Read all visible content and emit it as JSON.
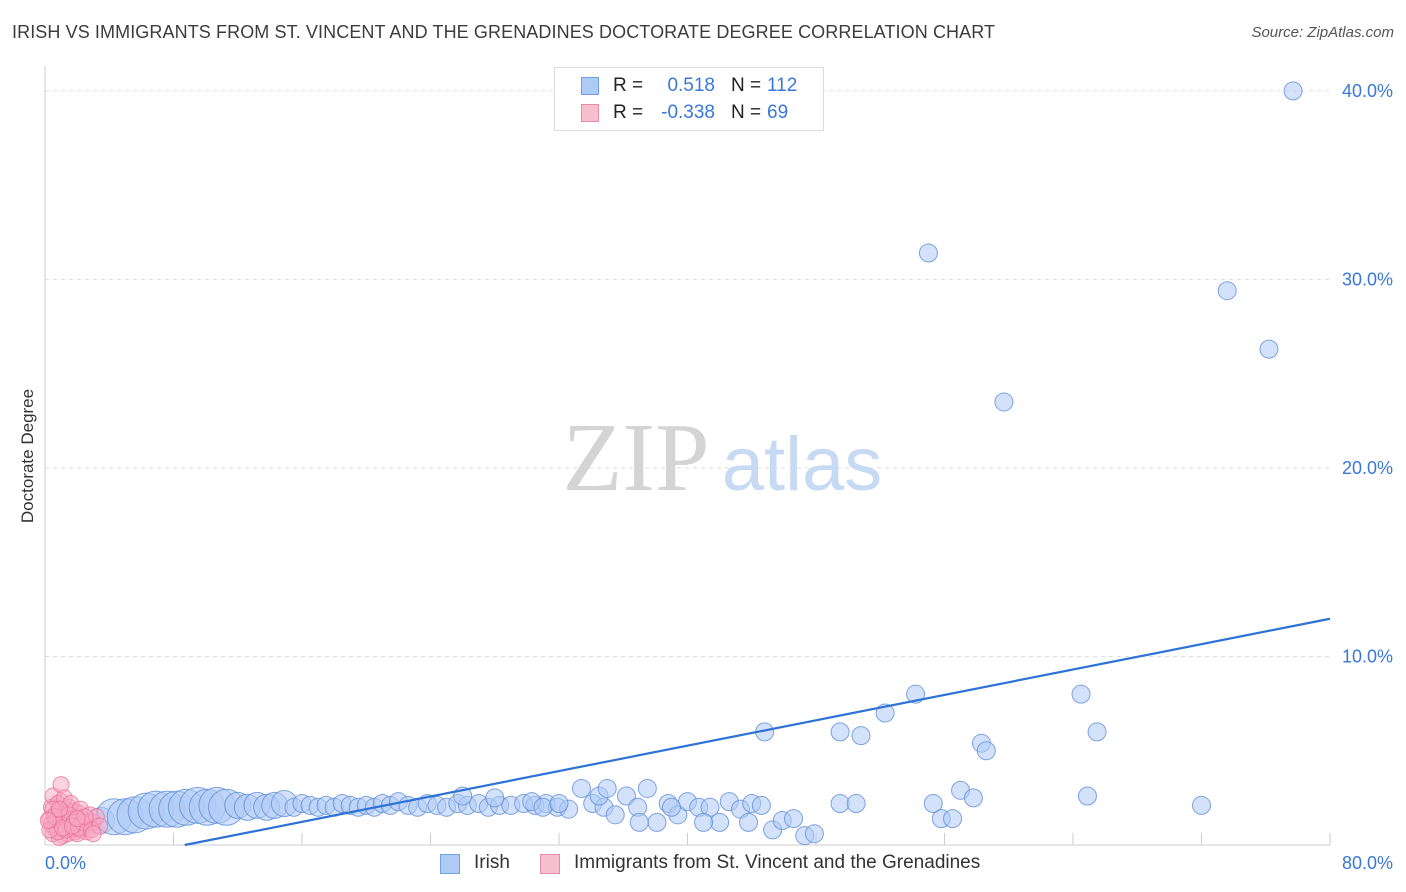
{
  "header": {
    "title": "IRISH VS IMMIGRANTS FROM ST. VINCENT AND THE GRENADINES DOCTORATE DEGREE CORRELATION CHART",
    "source": "Source: ZipAtlas.com"
  },
  "legend_top": {
    "r_label": "R =",
    "n_label": "N =",
    "rows": [
      {
        "r": "0.518",
        "n": "112",
        "fill": "#aecbf5",
        "stroke": "#6f9fe0"
      },
      {
        "r": "-0.338",
        "n": "69",
        "fill": "#f7bfd0",
        "stroke": "#e98aa7"
      }
    ]
  },
  "watermark": {
    "zip": "ZIP",
    "atlas": "atlas"
  },
  "colors": {
    "irish_fill": "#aecbf5",
    "irish_stroke": "#5f8fd8",
    "irish_line": "#2f72d6",
    "svg_fill": "#f7a7c2",
    "svg_stroke": "#e86f98",
    "tick_label": "#3a78d8",
    "grid": "#dddddd"
  },
  "chart_data": {
    "type": "scatter",
    "title": "IRISH VS IMMIGRANTS FROM ST. VINCENT AND THE GRENADINES DOCTORATE DEGREE CORRELATION CHART",
    "xlabel": "",
    "ylabel": "Doctorate Degree",
    "xlim": [
      0,
      80
    ],
    "ylim": [
      0,
      41
    ],
    "x_tick_labels": [
      "0.0%",
      "80.0%"
    ],
    "y_ticks": [
      {
        "value": 10,
        "label": "10.0%"
      },
      {
        "value": 20,
        "label": "20.0%"
      },
      {
        "value": 30,
        "label": "30.0%"
      },
      {
        "value": 40,
        "label": "40.0%"
      }
    ],
    "grid": true,
    "series": [
      {
        "name": "Irish",
        "r": 0.518,
        "n": 112,
        "trend": {
          "x": [
            8.7,
            80.0
          ],
          "y": [
            0.0,
            12.0
          ]
        },
        "points": [
          {
            "x": 2.5,
            "y": 1.2,
            "s": 1
          },
          {
            "x": 3.5,
            "y": 1.3,
            "s": 2
          },
          {
            "x": 4.3,
            "y": 1.5,
            "s": 3
          },
          {
            "x": 5.0,
            "y": 1.5,
            "s": 3
          },
          {
            "x": 5.6,
            "y": 1.6,
            "s": 3
          },
          {
            "x": 6.3,
            "y": 1.8,
            "s": 3
          },
          {
            "x": 6.9,
            "y": 1.9,
            "s": 3
          },
          {
            "x": 7.6,
            "y": 1.9,
            "s": 3
          },
          {
            "x": 8.2,
            "y": 1.9,
            "s": 3
          },
          {
            "x": 8.8,
            "y": 2.0,
            "s": 3
          },
          {
            "x": 9.5,
            "y": 2.1,
            "s": 3
          },
          {
            "x": 10.1,
            "y": 2.0,
            "s": 3
          },
          {
            "x": 10.7,
            "y": 2.1,
            "s": 3
          },
          {
            "x": 11.3,
            "y": 2.0,
            "s": 3
          },
          {
            "x": 12.0,
            "y": 2.1,
            "s": 2
          },
          {
            "x": 12.6,
            "y": 2.0,
            "s": 2
          },
          {
            "x": 13.2,
            "y": 2.1,
            "s": 2
          },
          {
            "x": 13.8,
            "y": 2.0,
            "s": 2
          },
          {
            "x": 14.3,
            "y": 2.1,
            "s": 2
          },
          {
            "x": 14.9,
            "y": 2.2,
            "s": 2
          },
          {
            "x": 15.5,
            "y": 2.0,
            "s": 1
          },
          {
            "x": 16.0,
            "y": 2.2,
            "s": 1
          },
          {
            "x": 16.5,
            "y": 2.1,
            "s": 1
          },
          {
            "x": 17.0,
            "y": 2.0,
            "s": 1
          },
          {
            "x": 17.5,
            "y": 2.1,
            "s": 1
          },
          {
            "x": 18.0,
            "y": 2.0,
            "s": 1
          },
          {
            "x": 18.5,
            "y": 2.2,
            "s": 1
          },
          {
            "x": 19.0,
            "y": 2.1,
            "s": 1
          },
          {
            "x": 19.5,
            "y": 2.0,
            "s": 1
          },
          {
            "x": 20.0,
            "y": 2.1,
            "s": 1
          },
          {
            "x": 20.5,
            "y": 2.0,
            "s": 1
          },
          {
            "x": 21.0,
            "y": 2.2,
            "s": 1
          },
          {
            "x": 21.5,
            "y": 2.1,
            "s": 1
          },
          {
            "x": 22.0,
            "y": 2.3,
            "s": 1
          },
          {
            "x": 22.6,
            "y": 2.1,
            "s": 1
          },
          {
            "x": 23.2,
            "y": 2.0,
            "s": 1
          },
          {
            "x": 23.8,
            "y": 2.2,
            "s": 1
          },
          {
            "x": 24.4,
            "y": 2.1,
            "s": 1
          },
          {
            "x": 25.0,
            "y": 2.0,
            "s": 1
          },
          {
            "x": 25.7,
            "y": 2.2,
            "s": 1
          },
          {
            "x": 26.3,
            "y": 2.1,
            "s": 1
          },
          {
            "x": 27.0,
            "y": 2.2,
            "s": 1
          },
          {
            "x": 27.6,
            "y": 2.0,
            "s": 1
          },
          {
            "x": 28.3,
            "y": 2.1,
            "s": 1
          },
          {
            "x": 29.0,
            "y": 2.1,
            "s": 1
          },
          {
            "x": 29.8,
            "y": 2.2,
            "s": 1
          },
          {
            "x": 30.5,
            "y": 2.1,
            "s": 1
          },
          {
            "x": 31.2,
            "y": 2.2,
            "s": 1
          },
          {
            "x": 31.9,
            "y": 2.0,
            "s": 1
          },
          {
            "x": 32.6,
            "y": 1.9,
            "s": 1
          },
          {
            "x": 33.4,
            "y": 3.0,
            "s": 1
          },
          {
            "x": 34.1,
            "y": 2.2,
            "s": 1
          },
          {
            "x": 34.8,
            "y": 2.0,
            "s": 1
          },
          {
            "x": 35.5,
            "y": 1.6,
            "s": 1
          },
          {
            "x": 36.2,
            "y": 2.6,
            "s": 1
          },
          {
            "x": 36.9,
            "y": 2.0,
            "s": 1
          },
          {
            "x": 37.5,
            "y": 3.0,
            "s": 1
          },
          {
            "x": 38.1,
            "y": 1.2,
            "s": 1
          },
          {
            "x": 38.8,
            "y": 2.2,
            "s": 1
          },
          {
            "x": 39.4,
            "y": 1.6,
            "s": 1
          },
          {
            "x": 40.0,
            "y": 2.3,
            "s": 1
          },
          {
            "x": 40.7,
            "y": 2.0,
            "s": 1
          },
          {
            "x": 41.4,
            "y": 2.0,
            "s": 1
          },
          {
            "x": 42.0,
            "y": 1.2,
            "s": 1
          },
          {
            "x": 42.6,
            "y": 2.3,
            "s": 1
          },
          {
            "x": 43.3,
            "y": 1.9,
            "s": 1
          },
          {
            "x": 44.0,
            "y": 2.2,
            "s": 1
          },
          {
            "x": 44.6,
            "y": 2.1,
            "s": 1
          },
          {
            "x": 45.3,
            "y": 0.8,
            "s": 1
          },
          {
            "x": 45.9,
            "y": 1.3,
            "s": 1
          },
          {
            "x": 46.6,
            "y": 1.4,
            "s": 1
          },
          {
            "x": 47.3,
            "y": 0.5,
            "s": 1
          },
          {
            "x": 34.5,
            "y": 2.6,
            "s": 1
          },
          {
            "x": 35.0,
            "y": 3.0,
            "s": 1
          },
          {
            "x": 37.0,
            "y": 1.2,
            "s": 1
          },
          {
            "x": 41.0,
            "y": 1.2,
            "s": 1
          },
          {
            "x": 43.8,
            "y": 1.2,
            "s": 1
          },
          {
            "x": 30.3,
            "y": 2.3,
            "s": 1
          },
          {
            "x": 28.0,
            "y": 2.5,
            "s": 1
          },
          {
            "x": 26.0,
            "y": 2.6,
            "s": 1
          },
          {
            "x": 44.8,
            "y": 6.0,
            "s": 1
          },
          {
            "x": 49.5,
            "y": 6.0,
            "s": 1
          },
          {
            "x": 50.8,
            "y": 5.8,
            "s": 1
          },
          {
            "x": 52.3,
            "y": 7.0,
            "s": 1
          },
          {
            "x": 54.2,
            "y": 8.0,
            "s": 1
          },
          {
            "x": 58.3,
            "y": 5.4,
            "s": 1
          },
          {
            "x": 58.6,
            "y": 5.0,
            "s": 1
          },
          {
            "x": 64.5,
            "y": 8.0,
            "s": 1
          },
          {
            "x": 65.5,
            "y": 6.0,
            "s": 1
          },
          {
            "x": 49.5,
            "y": 2.2,
            "s": 1
          },
          {
            "x": 50.5,
            "y": 2.2,
            "s": 1
          },
          {
            "x": 55.3,
            "y": 2.2,
            "s": 1
          },
          {
            "x": 55.8,
            "y": 1.4,
            "s": 1
          },
          {
            "x": 56.5,
            "y": 1.4,
            "s": 1
          },
          {
            "x": 57.0,
            "y": 2.9,
            "s": 1
          },
          {
            "x": 57.8,
            "y": 2.5,
            "s": 1
          },
          {
            "x": 64.9,
            "y": 2.6,
            "s": 1
          },
          {
            "x": 72.0,
            "y": 2.1,
            "s": 1
          },
          {
            "x": 47.9,
            "y": 0.6,
            "s": 1
          },
          {
            "x": 39.0,
            "y": 2.0,
            "s": 1
          },
          {
            "x": 31.0,
            "y": 2.0,
            "s": 1
          },
          {
            "x": 32.0,
            "y": 2.2,
            "s": 1
          },
          {
            "x": 55.0,
            "y": 31.4,
            "s": 1
          },
          {
            "x": 59.7,
            "y": 23.5,
            "s": 1
          },
          {
            "x": 73.6,
            "y": 29.4,
            "s": 1
          },
          {
            "x": 76.2,
            "y": 26.3,
            "s": 1
          },
          {
            "x": 77.7,
            "y": 40.0,
            "s": 1
          }
        ]
      },
      {
        "name": "Immigrants from St. Vincent and the Grenadines",
        "r": -0.338,
        "n": 69,
        "points": [
          {
            "x": 0.4,
            "y": 2.0
          },
          {
            "x": 0.6,
            "y": 1.6
          },
          {
            "x": 0.8,
            "y": 1.2
          },
          {
            "x": 1.0,
            "y": 2.3
          },
          {
            "x": 1.2,
            "y": 1.0
          },
          {
            "x": 1.4,
            "y": 1.5
          },
          {
            "x": 1.6,
            "y": 0.8
          },
          {
            "x": 0.5,
            "y": 0.6
          },
          {
            "x": 0.7,
            "y": 1.0
          },
          {
            "x": 0.9,
            "y": 1.7
          },
          {
            "x": 1.1,
            "y": 0.5
          },
          {
            "x": 1.3,
            "y": 1.3
          },
          {
            "x": 1.5,
            "y": 2.0
          },
          {
            "x": 1.7,
            "y": 1.1
          },
          {
            "x": 1.9,
            "y": 0.7
          },
          {
            "x": 2.1,
            "y": 1.0
          },
          {
            "x": 2.3,
            "y": 1.4
          },
          {
            "x": 2.5,
            "y": 0.9
          },
          {
            "x": 2.7,
            "y": 1.2
          },
          {
            "x": 0.3,
            "y": 1.4
          },
          {
            "x": 0.5,
            "y": 2.6
          },
          {
            "x": 0.8,
            "y": 2.2
          },
          {
            "x": 1.0,
            "y": 1.8
          },
          {
            "x": 1.2,
            "y": 1.6
          },
          {
            "x": 1.4,
            "y": 0.6
          },
          {
            "x": 1.6,
            "y": 1.4
          },
          {
            "x": 1.8,
            "y": 1.8
          },
          {
            "x": 2.0,
            "y": 1.3
          },
          {
            "x": 2.2,
            "y": 0.8
          },
          {
            "x": 0.6,
            "y": 0.9
          },
          {
            "x": 0.9,
            "y": 0.4
          },
          {
            "x": 1.1,
            "y": 1.5
          },
          {
            "x": 1.3,
            "y": 1.9
          },
          {
            "x": 1.5,
            "y": 1.1
          },
          {
            "x": 1.7,
            "y": 0.9
          },
          {
            "x": 1.9,
            "y": 1.5
          },
          {
            "x": 2.1,
            "y": 1.7
          },
          {
            "x": 2.4,
            "y": 1.1
          },
          {
            "x": 2.6,
            "y": 0.7
          },
          {
            "x": 3.0,
            "y": 1.2
          },
          {
            "x": 1.0,
            "y": 3.2
          },
          {
            "x": 0.4,
            "y": 1.1
          },
          {
            "x": 0.7,
            "y": 1.3
          },
          {
            "x": 1.2,
            "y": 2.5
          },
          {
            "x": 1.4,
            "y": 1.2
          },
          {
            "x": 1.6,
            "y": 2.2
          },
          {
            "x": 2.0,
            "y": 0.6
          },
          {
            "x": 2.2,
            "y": 1.9
          },
          {
            "x": 2.8,
            "y": 1.6
          },
          {
            "x": 3.2,
            "y": 1.5
          },
          {
            "x": 0.5,
            "y": 1.9
          },
          {
            "x": 0.8,
            "y": 0.7
          },
          {
            "x": 1.0,
            "y": 1.1
          },
          {
            "x": 1.3,
            "y": 0.8
          },
          {
            "x": 1.5,
            "y": 1.6
          },
          {
            "x": 1.8,
            "y": 1.2
          },
          {
            "x": 2.1,
            "y": 0.9
          },
          {
            "x": 2.3,
            "y": 1.2
          },
          {
            "x": 2.5,
            "y": 1.5
          },
          {
            "x": 2.9,
            "y": 0.8
          },
          {
            "x": 3.4,
            "y": 1.0
          },
          {
            "x": 0.3,
            "y": 0.8
          },
          {
            "x": 0.6,
            "y": 1.5
          },
          {
            "x": 0.9,
            "y": 1.9
          },
          {
            "x": 1.1,
            "y": 0.9
          },
          {
            "x": 1.7,
            "y": 1.0
          },
          {
            "x": 3.0,
            "y": 0.6
          },
          {
            "x": 0.2,
            "y": 1.3
          },
          {
            "x": 2.0,
            "y": 1.4
          }
        ]
      }
    ]
  },
  "bottom_legend": [
    {
      "label": "Irish",
      "fill": "#aecbf5",
      "stroke": "#6f9fe0"
    },
    {
      "label": "Immigrants from St. Vincent and the Grenadines",
      "fill": "#f7bfd0",
      "stroke": "#e98aa7"
    }
  ]
}
